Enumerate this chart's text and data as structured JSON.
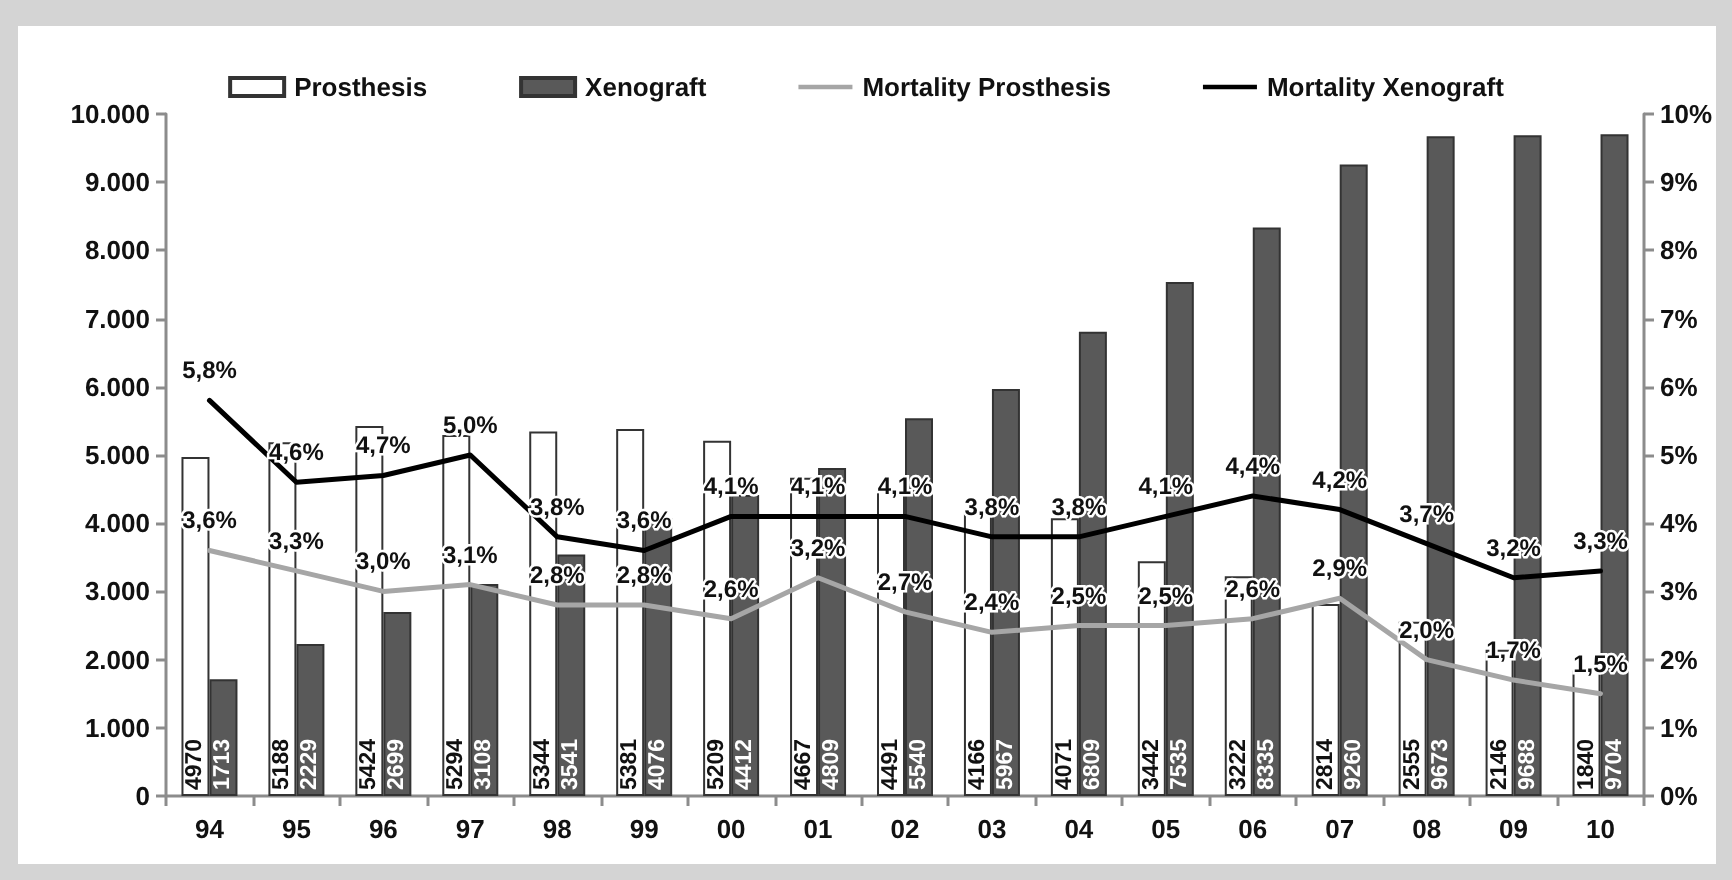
{
  "chart_data": {
    "type": "bar",
    "categories": [
      "94",
      "95",
      "96",
      "97",
      "98",
      "99",
      "00",
      "01",
      "02",
      "03",
      "04",
      "05",
      "06",
      "07",
      "08",
      "09",
      "10"
    ],
    "series": [
      {
        "name": "Prosthesis",
        "color": "#ffffff",
        "values": [
          4970,
          5188,
          5424,
          5294,
          5344,
          5381,
          5209,
          4667,
          4491,
          4166,
          4071,
          3442,
          3222,
          2814,
          2555,
          2146,
          1840
        ],
        "value_labels": [
          "4970",
          "5188",
          "5424",
          "5294",
          "5344",
          "5381",
          "5209",
          "4667",
          "4491",
          "4166",
          "4071",
          "3442",
          "3222",
          "2814",
          "2555",
          "2146",
          "1840"
        ]
      },
      {
        "name": "Xenograft",
        "color": "#595959",
        "values": [
          1713,
          2229,
          2699,
          3108,
          3541,
          4076,
          4412,
          4809,
          5540,
          5967,
          6809,
          7535,
          8335,
          9260,
          9673,
          9688,
          9704
        ],
        "value_labels": [
          "1713",
          "2229",
          "2699",
          "3108",
          "3541",
          "4076",
          "4412",
          "4809",
          "5540",
          "5967",
          "6809",
          "7535",
          "8335",
          "9260",
          "9673",
          "9688",
          "9704"
        ]
      },
      {
        "name": "Mortality Prosthesis",
        "type": "line",
        "axis": "y2",
        "color": "#a6a6a6",
        "values": [
          3.6,
          3.3,
          3.0,
          3.1,
          2.8,
          2.8,
          2.6,
          3.2,
          2.7,
          2.4,
          2.5,
          2.5,
          2.6,
          2.9,
          2.0,
          1.7,
          1.5
        ],
        "value_labels": [
          "3,6%",
          "3,3%",
          "3,0%",
          "3,1%",
          "2,8%",
          "2,8%",
          "2,6%",
          "3,2%",
          "2,7%",
          "2,4%",
          "2,5%",
          "2,5%",
          "2,6%",
          "2,9%",
          "2,0%",
          "1,7%",
          "1,5%"
        ]
      },
      {
        "name": "Mortality Xenograft",
        "type": "line",
        "axis": "y2",
        "color": "#000000",
        "values": [
          5.8,
          4.6,
          4.7,
          5.0,
          3.8,
          3.6,
          4.1,
          4.1,
          4.1,
          3.8,
          3.8,
          4.1,
          4.4,
          4.2,
          3.7,
          3.2,
          3.3
        ],
        "value_labels": [
          "5,8%",
          "4,6%",
          "4,7%",
          "5,0%",
          "3,8%",
          "3,6%",
          "4,1%",
          "4,1%",
          "4,1%",
          "3,8%",
          "3,8%",
          "4,1%",
          "4,4%",
          "4,2%",
          "3,7%",
          "3,2%",
          "3,3%"
        ]
      }
    ],
    "ylim": [
      0,
      10000
    ],
    "yticks": [
      0,
      {
        "value": 1000,
        "label": "1.000"
      },
      {
        "value": 2000,
        "label": "2.000"
      },
      {
        "value": 3000,
        "label": "3.000"
      },
      {
        "value": 4000,
        "label": "4.000"
      },
      {
        "value": 5000,
        "label": "5.000"
      },
      {
        "value": 6000,
        "label": "6.000"
      },
      {
        "value": 7000,
        "label": "7.000"
      },
      {
        "value": 8000,
        "label": "8.000"
      },
      {
        "value": 9000,
        "label": "9.000"
      },
      {
        "value": 10000,
        "label": "10.000"
      }
    ],
    "y2lim": [
      0,
      10
    ],
    "y2ticks": [
      {
        "value": 0,
        "label": "0%"
      },
      {
        "value": 1,
        "label": "1%"
      },
      {
        "value": 2,
        "label": "2%"
      },
      {
        "value": 3,
        "label": "3%"
      },
      {
        "value": 4,
        "label": "4%"
      },
      {
        "value": 5,
        "label": "5%"
      },
      {
        "value": 6,
        "label": "6%"
      },
      {
        "value": 7,
        "label": "7%"
      },
      {
        "value": 8,
        "label": "8%"
      },
      {
        "value": 9,
        "label": "9%"
      },
      {
        "value": 10,
        "label": "10%"
      }
    ],
    "legend": "top",
    "grid": false,
    "marker": "none",
    "line_style": "solid"
  }
}
